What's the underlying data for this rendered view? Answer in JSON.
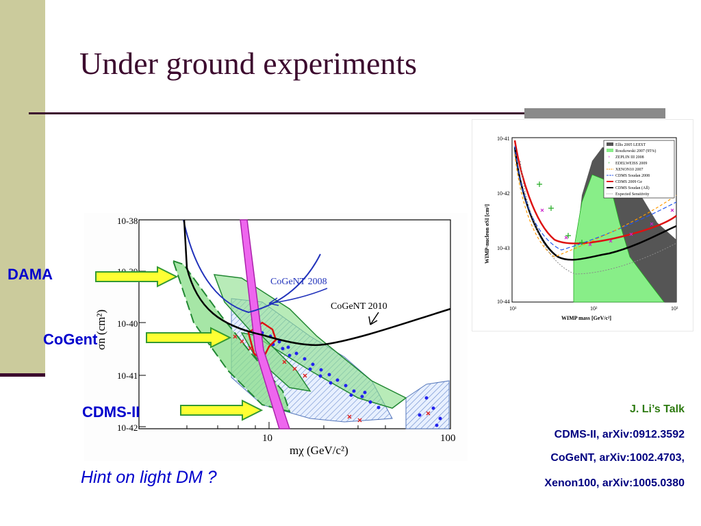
{
  "slide": {
    "title": "Under ground experiments",
    "hint": "Hint on light DM ?"
  },
  "labels": {
    "dama": "DAMA",
    "cogent": "CoGent",
    "cdms": "CDMS-II"
  },
  "references": {
    "talk": "J. Li’s Talk",
    "cdms": "CDMS-II, arXiv:0912.3592",
    "cogent": "CoGeNT, arXiv:1002.4703,",
    "xenon": "Xenon100,  arXiv:1005.0380"
  },
  "main_plot": {
    "y_ticks": [
      "10-38",
      "10-39",
      "10-40",
      "10-41",
      "10-42"
    ],
    "x_ticks": [
      "10",
      "100"
    ],
    "x_label": "mχ (GeV/c²)",
    "y_label": "σn (cm²)",
    "annotations": [
      "CoGeNT 2008",
      "CoGeNT 2010"
    ]
  },
  "right_plot": {
    "y_ticks": [
      "10-41",
      "10-42",
      "10-43",
      "10-44"
    ],
    "x_ticks": [
      "10¹",
      "10²",
      "10³"
    ],
    "x_label": "WIMP mass [GeV/c²]",
    "y_label": "WIMP-nucleon σSI [cm²]",
    "legend": [
      "Ellis 2005 LEEST",
      "Roszkowski 2007 (95%)",
      "ZEPLIN III 2008",
      "EDELWEISS 2009",
      "XENON10 2007",
      "CDMS Soudan 2008",
      "CDMS 2009 Ge",
      "CDMS Soudan (All)",
      "Expected Sensitivity"
    ]
  },
  "colors": {
    "title": "#3c0a2e",
    "sidebar": "#cbcb9c",
    "label_blue": "#0000cc",
    "ref_green": "#2d7a10",
    "ref_navy": "#000080",
    "arrow_fill": "#ffff33",
    "arrow_stroke": "#339933"
  }
}
